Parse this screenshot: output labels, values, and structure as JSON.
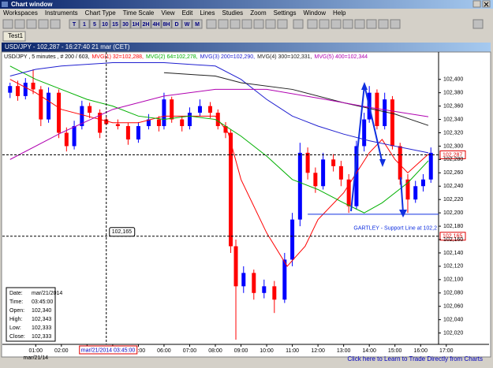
{
  "window": {
    "title": "Chart window",
    "menu": [
      "Workspaces",
      "Instruments",
      "Chart Type",
      "Time Scale",
      "View",
      "Edit",
      "Lines",
      "Studies",
      "Zoom",
      "Settings",
      "Window",
      "Help"
    ],
    "toolbar": [
      "T",
      "1",
      "5",
      "10",
      "15",
      "30",
      "1H",
      "2H",
      "4H",
      "8H",
      "D",
      "W",
      "M"
    ],
    "tab": "Test1",
    "status": "Click here to Learn to Trade Directly from Charts"
  },
  "chart_data": {
    "type": "candlestick",
    "title": "USD/JPY - 102,287 - 16:27:40  21 mar (CET)",
    "subtitle": "USD/JPY , 5 minutes , # 200 / 603,",
    "x": [
      0,
      0.3,
      0.6,
      0.9,
      1.2,
      1.5,
      1.9,
      2.2,
      2.5,
      2.8,
      3.1,
      3.5,
      3.75,
      4.2,
      4.6,
      5,
      5.4,
      5.8,
      6,
      6.3,
      6.7,
      7,
      7.4,
      7.8,
      8.1,
      8.4,
      8.6,
      8.8,
      9.1,
      9.5,
      9.9,
      10.3,
      10.7,
      11,
      11.3,
      11.6,
      11.9,
      12.2,
      12.6,
      12.9,
      13.2,
      13.5,
      13.8,
      14,
      14.3,
      14.6,
      14.9,
      15.2,
      15.5,
      15.8,
      16.1,
      16.4
    ],
    "open": [
      102380,
      102390,
      102375,
      102395,
      102385,
      102340,
      102380,
      102320,
      102300,
      102330,
      102360,
      102350,
      102340,
      102333,
      102330,
      102310,
      102330,
      102340,
      102330,
      102370,
      102340,
      102330,
      102350,
      102360,
      102350,
      102330,
      102320,
      102150,
      102090,
      102110,
      102080,
      102090,
      102070,
      102130,
      102190,
      102290,
      102260,
      102240,
      102280,
      102270,
      102250,
      102210,
      102300,
      102340,
      102380,
      102330,
      102370,
      102300,
      102250,
      102220,
      102240,
      102250
    ],
    "high": [
      102395,
      102398,
      102402,
      102415,
      102390,
      102388,
      102385,
      102328,
      102338,
      102368,
      102365,
      102355,
      102343,
      102340,
      102335,
      102336,
      102348,
      102345,
      102380,
      102374,
      102345,
      102358,
      102370,
      102366,
      102355,
      102336,
      102325,
      102160,
      102120,
      102115,
      102100,
      102098,
      102140,
      102200,
      102305,
      102298,
      102268,
      102290,
      102288,
      102278,
      102258,
      102308,
      102350,
      102390,
      102385,
      102380,
      102375,
      102305,
      102258,
      102248,
      102258,
      102298
    ],
    "low": [
      102372,
      102368,
      102370,
      102378,
      102330,
      102335,
      102312,
      102292,
      102295,
      102325,
      102342,
      102312,
      102333,
      102325,
      102302,
      102305,
      102325,
      102322,
      102325,
      102335,
      102322,
      102325,
      102345,
      102342,
      102325,
      102312,
      102140,
      102010,
      102080,
      102070,
      102072,
      102050,
      102065,
      102120,
      102180,
      102250,
      102230,
      102235,
      102262,
      102240,
      102200,
      102205,
      102292,
      102335,
      102325,
      102325,
      102295,
      102242,
      102200,
      102215,
      102232,
      102245
    ],
    "close": [
      102390,
      102375,
      102395,
      102385,
      102340,
      102380,
      102320,
      102300,
      102330,
      102360,
      102350,
      102320,
      102333,
      102330,
      102310,
      102330,
      102340,
      102330,
      102370,
      102340,
      102330,
      102350,
      102360,
      102350,
      102330,
      102320,
      102150,
      102090,
      102110,
      102080,
      102090,
      102070,
      102130,
      102190,
      102290,
      102260,
      102240,
      102280,
      102270,
      102250,
      102210,
      102300,
      102340,
      102380,
      102330,
      102370,
      102300,
      102250,
      102220,
      102240,
      102250,
      102290
    ],
    "up_color": "#0000ff",
    "down_color": "#ff0000",
    "series": [
      {
        "name": "MVG(1) 32=102,288,",
        "color": "#ff0000",
        "x": [
          0,
          1,
          2,
          3,
          4,
          5,
          6,
          7,
          8,
          8.5,
          9,
          10,
          10.8,
          11.5,
          12,
          13,
          14,
          14.5,
          15,
          15.5,
          16.3
        ],
        "values": [
          102400,
          102380,
          102355,
          102345,
          102335,
          102335,
          102345,
          102345,
          102345,
          102320,
          102250,
          102170,
          102120,
          102150,
          102190,
          102230,
          102290,
          102310,
          102280,
          102260,
          102288
        ]
      },
      {
        "name": "MVG(2) 64=102,278,",
        "color": "#00b000",
        "x": [
          0,
          1,
          2,
          3,
          4,
          5,
          6,
          7,
          8,
          9,
          10,
          11,
          12,
          13,
          13.8,
          14.5,
          15.5,
          16.3
        ],
        "values": [
          102420,
          102400,
          102385,
          102370,
          102360,
          102345,
          102340,
          102345,
          102340,
          102315,
          102285,
          102250,
          102235,
          102215,
          102200,
          102215,
          102245,
          102278
        ]
      },
      {
        "name": "MVG(3) 200=102,290,",
        "color": "#2020d0",
        "x": [
          0,
          1,
          2,
          4,
          6,
          8,
          9,
          10,
          11,
          12,
          13,
          14,
          15,
          16.3
        ],
        "values": [
          102405,
          102415,
          102420,
          102425,
          102425,
          102420,
          102400,
          102370,
          102345,
          102330,
          102318,
          102308,
          102300,
          102290
        ]
      },
      {
        "name": "MVG(4) 300=102,331,",
        "color": "#202020",
        "x": [
          6,
          8,
          9,
          11,
          13,
          15,
          16.3
        ],
        "values": [
          102410,
          102405,
          102395,
          102385,
          102365,
          102348,
          102331
        ]
      },
      {
        "name": "MVG(5) 400=102,344",
        "color": "#b000b0",
        "x": [
          0,
          2,
          4,
          6,
          8,
          10,
          12,
          14,
          16.3
        ],
        "values": [
          102280,
          102320,
          102355,
          102375,
          102385,
          102385,
          102372,
          102358,
          102344
        ]
      }
    ],
    "xlim": [
      -0.3,
      16.7
    ],
    "xticks": [
      {
        "value": 1,
        "label": "01:00"
      },
      {
        "value": 2,
        "label": "02:00"
      },
      {
        "value": 3,
        "label": "03:00"
      },
      {
        "value": 4,
        "label": "04:00"
      },
      {
        "value": 5,
        "label": "05:00"
      },
      {
        "value": 6,
        "label": "06:00"
      },
      {
        "value": 7,
        "label": "07:00"
      },
      {
        "value": 8,
        "label": "08:00"
      },
      {
        "value": 9,
        "label": "09:00"
      },
      {
        "value": 10,
        "label": "10:00"
      },
      {
        "value": 11,
        "label": "11:00"
      },
      {
        "value": 12,
        "label": "12:00"
      },
      {
        "value": 13,
        "label": "13:00"
      },
      {
        "value": 14,
        "label": "14:00"
      },
      {
        "value": 15,
        "label": "15:00"
      },
      {
        "value": 16,
        "label": "16:00"
      },
      {
        "value": 17,
        "label": "17:00"
      }
    ],
    "date_label": "mar/21/14",
    "ylim": [
      102003,
      102441
    ],
    "yticks": [
      {
        "value": 102020,
        "label": "102,020"
      },
      {
        "value": 102040,
        "label": "102,040"
      },
      {
        "value": 102060,
        "label": "102,060"
      },
      {
        "value": 102080,
        "label": "102,080"
      },
      {
        "value": 102100,
        "label": "102,100"
      },
      {
        "value": 102120,
        "label": "102,120"
      },
      {
        "value": 102140,
        "label": "102,140"
      },
      {
        "value": 102160,
        "label": "102,160"
      },
      {
        "value": 102180,
        "label": "102,180"
      },
      {
        "value": 102200,
        "label": "102,200"
      },
      {
        "value": 102220,
        "label": "102,220"
      },
      {
        "value": 102240,
        "label": "102,240"
      },
      {
        "value": 102260,
        "label": "102,260"
      },
      {
        "value": 102280,
        "label": "102,280"
      },
      {
        "value": 102300,
        "label": "102,300"
      },
      {
        "value": 102320,
        "label": "102,320"
      },
      {
        "value": 102340,
        "label": "102,340"
      },
      {
        "value": 102360,
        "label": "102,360"
      },
      {
        "value": 102380,
        "label": "102,380"
      },
      {
        "value": 102400,
        "label": "102,400"
      }
    ],
    "price_line": {
      "value": 102287,
      "label": "102,287"
    },
    "crosshair": {
      "x": 3.75,
      "y": 102165,
      "x_label": "mar/21/2014 03:45:00",
      "y_label": "102,165"
    },
    "support_line": {
      "y": 102198,
      "x_start": 11.6,
      "label": "GARTLEY - Support Line at 102,2"
    },
    "info": [
      [
        "Date:",
        "mar/21/2014"
      ],
      [
        "Time:",
        "03:45:00"
      ],
      [
        "Open:",
        "102,340"
      ],
      [
        "High:",
        "102,343"
      ],
      [
        "Low:",
        "102,333"
      ],
      [
        "Close:",
        "102,333"
      ]
    ]
  }
}
